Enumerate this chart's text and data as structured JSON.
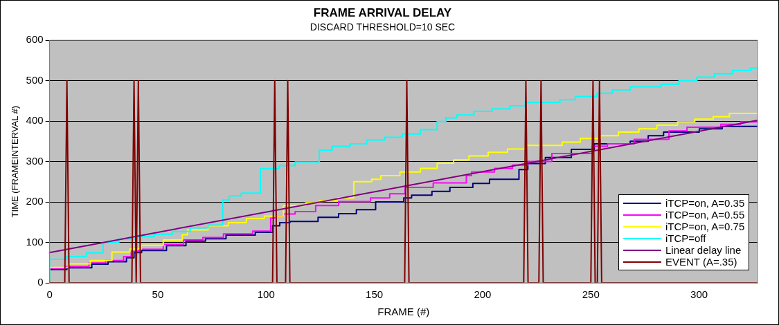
{
  "chart_data": {
    "type": "step",
    "title": "FRAME ARRIVAL DELAY",
    "subtitle": "DISCARD THRESHOLD=10 SEC",
    "xlabel": "FRAME (#)",
    "ylabel": "TIME (FRAMEINTERVAL #)",
    "xlim": [
      0,
      327
    ],
    "xticks": [
      0,
      50,
      100,
      150,
      200,
      250,
      300
    ],
    "ylim": [
      0,
      600
    ],
    "yticks": [
      0,
      100,
      200,
      300,
      400,
      500,
      600
    ],
    "grid": "y",
    "legend": "bottom right",
    "marker": "none",
    "line_style": "solid",
    "series": [
      {
        "name": "iTCP=on, A=0.35",
        "color": "#000080",
        "x": [
          0,
          8,
          19.5,
          27,
          35.5,
          39,
          42.5,
          54,
          63,
          72,
          81.5,
          95,
          103,
          106.3,
          111,
          124,
          133.5,
          141.7,
          150.6,
          163.6,
          167.2,
          176.6,
          184.9,
          195.5,
          203.2,
          216.8,
          220.9,
          229,
          241,
          251.6,
          268.2,
          276.5,
          283.6,
          300.1,
          310.7,
          319,
          327
        ],
        "values": [
          0,
          33,
          37,
          46,
          52,
          62,
          75,
          80,
          92,
          103,
          109,
          118,
          125,
          141,
          149,
          152,
          162,
          171,
          181,
          200,
          210,
          217,
          226,
          236,
          246,
          256,
          280,
          295,
          310,
          330,
          344,
          350,
          364,
          373,
          381,
          387,
          387
        ]
      },
      {
        "name": "iTCP=on, A=0.55",
        "color": "#ff00ff",
        "x": [
          0,
          7,
          18.2,
          25.9,
          34.2,
          37.7,
          41.2,
          52.5,
          61.9,
          70.8,
          80.3,
          93.8,
          102.1,
          103.9,
          108,
          113.4,
          122.9,
          133.5,
          148.2,
          157.1,
          164.2,
          177.2,
          192.5,
          194.9,
          205.5,
          213.8,
          220.9,
          232,
          250.6,
          257.7,
          270,
          286.1,
          294.4,
          310,
          319.2,
          323,
          327
        ],
        "values": [
          2,
          36,
          40,
          49,
          55,
          65,
          78,
          83,
          95,
          106,
          112,
          121,
          128,
          160,
          165,
          170,
          176,
          191,
          201,
          210,
          220,
          236,
          247,
          265,
          274,
          283,
          291,
          300,
          320,
          338,
          344,
          355,
          376,
          385,
          392,
          398,
          398
        ]
      },
      {
        "name": "iTCP=on, A=0.75",
        "color": "#ffff00",
        "x": [
          0,
          8.7,
          18.8,
          28.8,
          37.1,
          42.4,
          52.5,
          61.3,
          63.7,
          73.2,
          82.6,
          90.9,
          99.2,
          108,
          118.3,
          124.6,
          132.9,
          140.5,
          148.8,
          153,
          161.8,
          171.3,
          179,
          186.6,
          193.7,
          202.6,
          211.5,
          219.7,
          236.8,
          245.1,
          254.5,
          262.8,
          272.2,
          280.5,
          290,
          298,
          306.5,
          314,
          323,
          327
        ],
        "values": [
          3,
          38,
          47,
          55,
          76,
          84,
          93,
          106,
          119,
          131,
          141,
          149,
          159,
          165,
          191,
          198,
          203,
          210,
          250,
          256,
          265,
          274,
          283,
          296,
          304,
          314,
          323,
          331,
          340,
          348,
          357,
          364,
          373,
          381,
          390,
          398,
          405,
          411,
          419,
          419
        ]
      },
      {
        "name": "iTCP=off",
        "color": "#00ffff",
        "x": [
          0,
          8,
          17,
          24.7,
          32,
          40,
          48.3,
          56.6,
          64.9,
          73.2,
          80,
          83,
          88.5,
          97.4,
          106,
          113.4,
          124.6,
          130.5,
          138.8,
          146.5,
          154.7,
          163,
          171.3,
          179,
          183,
          188,
          196,
          204.4,
          212.7,
          219.7,
          235.7,
          242.8,
          252.8,
          260,
          268.2,
          282.4,
          290.7,
          299,
          307,
          315.5,
          323.8,
          327
        ],
        "values": [
          5,
          58,
          65,
          74,
          100,
          108,
          114,
          120,
          127,
          136,
          143,
          205,
          215,
          222,
          282,
          290,
          299,
          328,
          338,
          344,
          353,
          360,
          368,
          379,
          399,
          408,
          415,
          424,
          430,
          438,
          446,
          453,
          461,
          469,
          477,
          485,
          491,
          500,
          509,
          517,
          525,
          531
        ]
      },
      {
        "name": "Linear delay line",
        "type": "line",
        "color": "#800080",
        "x": [
          0,
          327
        ],
        "values": [
          75,
          402
        ]
      },
      {
        "name": "EVENT (A=.35)",
        "type": "line",
        "color": "#800000",
        "x": [
          0,
          7,
          8,
          9,
          38,
          39,
          40,
          41,
          42,
          103,
          104,
          105,
          109,
          110,
          111,
          164,
          165,
          166,
          219,
          220,
          221,
          226,
          227,
          228,
          250,
          251,
          252,
          253,
          254,
          255,
          327
        ],
        "values": [
          0,
          0,
          500,
          0,
          0,
          500,
          0,
          500,
          0,
          0,
          500,
          0,
          0,
          500,
          0,
          0,
          500,
          0,
          0,
          500,
          0,
          0,
          500,
          0,
          0,
          500,
          0,
          0,
          500,
          0,
          0
        ]
      }
    ]
  }
}
